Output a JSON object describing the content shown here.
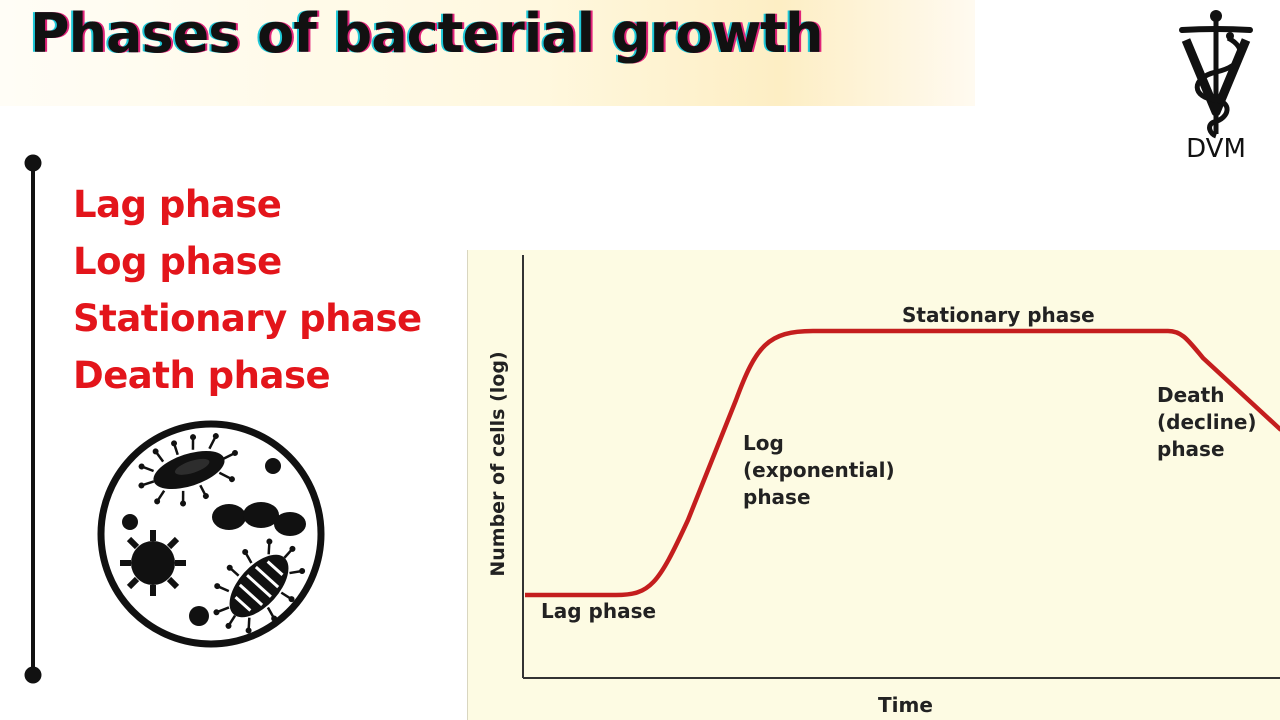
{
  "title": "Phases of bacterial growth",
  "logo": {
    "text": "DVM"
  },
  "phases": [
    "Lag phase",
    "Log phase",
    "Stationary phase",
    "Death phase"
  ],
  "graph": {
    "ylabel": "Number of cells (log)",
    "xlabel": "Time",
    "labels": {
      "lag": "Lag phase",
      "log": "Log\n(exponential)\nphase",
      "stationary": "Stationary phase",
      "death": "Death\n(decline)\nphase"
    },
    "curve_color": "#c41e1e"
  }
}
